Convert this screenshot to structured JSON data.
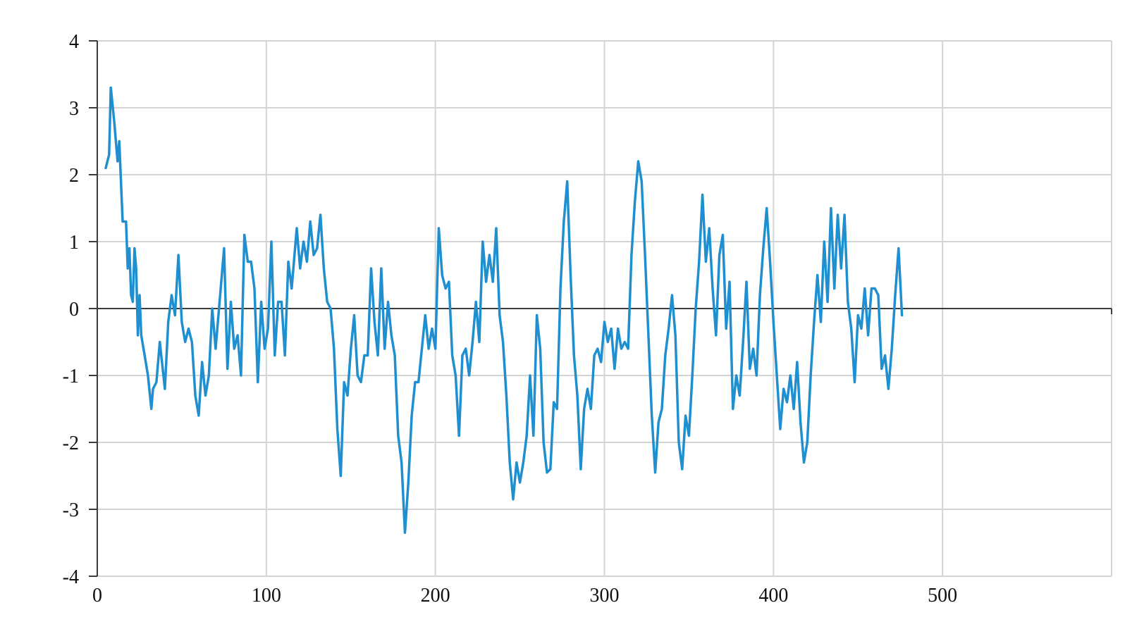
{
  "chart_data": {
    "type": "line",
    "title": "",
    "xlabel": "",
    "ylabel": "",
    "xlim": [
      0,
      600
    ],
    "ylim": [
      -4,
      4
    ],
    "x_ticks": [
      0,
      100,
      200,
      300,
      400,
      500
    ],
    "y_ticks": [
      4,
      3,
      2,
      1,
      0,
      -1,
      -2,
      -3,
      -4
    ],
    "x_tick_labels": [
      "0",
      "100",
      "200",
      "300",
      "400",
      "500"
    ],
    "y_tick_labels": [
      "4",
      "3",
      "2",
      "1",
      "0",
      "-1",
      "-2",
      "-3",
      "-4"
    ],
    "grid": true,
    "legend": "none",
    "colors": {
      "series": "#1f8fcf",
      "grid": "#d4d4d4",
      "axis": "#3c3c3c"
    },
    "series": [
      {
        "color": "#1f8fcf",
        "points": [
          [
            5,
            2.1
          ],
          [
            7,
            2.3
          ],
          [
            8,
            3.3
          ],
          [
            10,
            2.8
          ],
          [
            12,
            2.2
          ],
          [
            13,
            2.5
          ],
          [
            15,
            1.3
          ],
          [
            17,
            1.3
          ],
          [
            18,
            0.6
          ],
          [
            19,
            0.9
          ],
          [
            20,
            0.2
          ],
          [
            21,
            0.1
          ],
          [
            22,
            0.9
          ],
          [
            23,
            0.6
          ],
          [
            24,
            -0.4
          ],
          [
            25,
            0.2
          ],
          [
            26,
            -0.4
          ],
          [
            28,
            -0.7
          ],
          [
            30,
            -1.0
          ],
          [
            32,
            -1.5
          ],
          [
            33,
            -1.2
          ],
          [
            35,
            -1.1
          ],
          [
            37,
            -0.5
          ],
          [
            40,
            -1.2
          ],
          [
            42,
            -0.2
          ],
          [
            44,
            0.2
          ],
          [
            46,
            -0.1
          ],
          [
            48,
            0.8
          ],
          [
            50,
            -0.2
          ],
          [
            52,
            -0.5
          ],
          [
            54,
            -0.3
          ],
          [
            56,
            -0.5
          ],
          [
            58,
            -1.3
          ],
          [
            60,
            -1.6
          ],
          [
            62,
            -0.8
          ],
          [
            64,
            -1.3
          ],
          [
            66,
            -1.0
          ],
          [
            68,
            0.0
          ],
          [
            70,
            -0.6
          ],
          [
            72,
            0.0
          ],
          [
            75,
            0.9
          ],
          [
            77,
            -0.9
          ],
          [
            79,
            0.1
          ],
          [
            81,
            -0.6
          ],
          [
            83,
            -0.4
          ],
          [
            85,
            -1.0
          ],
          [
            87,
            1.1
          ],
          [
            89,
            0.7
          ],
          [
            91,
            0.7
          ],
          [
            93,
            0.3
          ],
          [
            95,
            -1.1
          ],
          [
            97,
            0.1
          ],
          [
            99,
            -0.6
          ],
          [
            101,
            -0.3
          ],
          [
            103,
            1.0
          ],
          [
            105,
            -0.7
          ],
          [
            107,
            0.1
          ],
          [
            109,
            0.1
          ],
          [
            111,
            -0.7
          ],
          [
            113,
            0.7
          ],
          [
            115,
            0.3
          ],
          [
            118,
            1.2
          ],
          [
            120,
            0.6
          ],
          [
            122,
            1.0
          ],
          [
            124,
            0.7
          ],
          [
            126,
            1.3
          ],
          [
            128,
            0.8
          ],
          [
            130,
            0.9
          ],
          [
            132,
            1.4
          ],
          [
            134,
            0.6
          ],
          [
            136,
            0.1
          ],
          [
            138,
            0.0
          ],
          [
            140,
            -0.6
          ],
          [
            142,
            -1.8
          ],
          [
            144,
            -2.5
          ],
          [
            146,
            -1.1
          ],
          [
            148,
            -1.3
          ],
          [
            150,
            -0.6
          ],
          [
            152,
            -0.1
          ],
          [
            154,
            -1.0
          ],
          [
            156,
            -1.1
          ],
          [
            158,
            -0.7
          ],
          [
            160,
            -0.7
          ],
          [
            162,
            0.6
          ],
          [
            164,
            -0.2
          ],
          [
            166,
            -0.7
          ],
          [
            168,
            0.6
          ],
          [
            170,
            -0.6
          ],
          [
            172,
            0.1
          ],
          [
            174,
            -0.4
          ],
          [
            176,
            -0.7
          ],
          [
            178,
            -1.9
          ],
          [
            180,
            -2.3
          ],
          [
            182,
            -3.35
          ],
          [
            184,
            -2.6
          ],
          [
            186,
            -1.6
          ],
          [
            188,
            -1.1
          ],
          [
            190,
            -1.1
          ],
          [
            192,
            -0.6
          ],
          [
            194,
            -0.1
          ],
          [
            196,
            -0.6
          ],
          [
            198,
            -0.3
          ],
          [
            200,
            -0.6
          ],
          [
            202,
            1.2
          ],
          [
            204,
            0.5
          ],
          [
            206,
            0.3
          ],
          [
            208,
            0.4
          ],
          [
            210,
            -0.7
          ],
          [
            212,
            -1.0
          ],
          [
            214,
            -1.9
          ],
          [
            216,
            -0.7
          ],
          [
            218,
            -0.6
          ],
          [
            220,
            -1.0
          ],
          [
            222,
            -0.5
          ],
          [
            224,
            0.1
          ],
          [
            226,
            -0.5
          ],
          [
            228,
            1.0
          ],
          [
            230,
            0.4
          ],
          [
            232,
            0.8
          ],
          [
            234,
            0.4
          ],
          [
            236,
            1.2
          ],
          [
            238,
            -0.1
          ],
          [
            240,
            -0.5
          ],
          [
            242,
            -1.3
          ],
          [
            244,
            -2.3
          ],
          [
            246,
            -2.85
          ],
          [
            248,
            -2.3
          ],
          [
            250,
            -2.6
          ],
          [
            252,
            -2.3
          ],
          [
            254,
            -1.9
          ],
          [
            256,
            -1.0
          ],
          [
            258,
            -1.9
          ],
          [
            260,
            -0.1
          ],
          [
            262,
            -0.6
          ],
          [
            264,
            -2.0
          ],
          [
            266,
            -2.45
          ],
          [
            268,
            -2.4
          ],
          [
            270,
            -1.4
          ],
          [
            272,
            -1.5
          ],
          [
            274,
            0.3
          ],
          [
            276,
            1.3
          ],
          [
            278,
            1.9
          ],
          [
            280,
            0.5
          ],
          [
            282,
            -0.7
          ],
          [
            284,
            -1.3
          ],
          [
            286,
            -2.4
          ],
          [
            288,
            -1.5
          ],
          [
            290,
            -1.2
          ],
          [
            292,
            -1.5
          ],
          [
            294,
            -0.7
          ],
          [
            296,
            -0.6
          ],
          [
            298,
            -0.8
          ],
          [
            300,
            -0.2
          ],
          [
            302,
            -0.5
          ],
          [
            304,
            -0.3
          ],
          [
            306,
            -0.9
          ],
          [
            308,
            -0.3
          ],
          [
            310,
            -0.6
          ],
          [
            312,
            -0.5
          ],
          [
            314,
            -0.6
          ],
          [
            316,
            0.8
          ],
          [
            318,
            1.6
          ],
          [
            320,
            2.2
          ],
          [
            322,
            1.9
          ],
          [
            324,
            0.8
          ],
          [
            326,
            -0.4
          ],
          [
            328,
            -1.6
          ],
          [
            330,
            -2.45
          ],
          [
            332,
            -1.7
          ],
          [
            334,
            -1.5
          ],
          [
            336,
            -0.7
          ],
          [
            338,
            -0.3
          ],
          [
            340,
            0.2
          ],
          [
            342,
            -0.4
          ],
          [
            344,
            -2.0
          ],
          [
            346,
            -2.4
          ],
          [
            348,
            -1.6
          ],
          [
            350,
            -1.9
          ],
          [
            352,
            -1.0
          ],
          [
            354,
            0.0
          ],
          [
            356,
            0.7
          ],
          [
            358,
            1.7
          ],
          [
            360,
            0.7
          ],
          [
            362,
            1.2
          ],
          [
            364,
            0.3
          ],
          [
            366,
            -0.4
          ],
          [
            368,
            0.8
          ],
          [
            370,
            1.1
          ],
          [
            372,
            -0.3
          ],
          [
            374,
            0.4
          ],
          [
            376,
            -1.5
          ],
          [
            378,
            -1.0
          ],
          [
            380,
            -1.3
          ],
          [
            382,
            -0.5
          ],
          [
            384,
            0.4
          ],
          [
            386,
            -0.9
          ],
          [
            388,
            -0.6
          ],
          [
            390,
            -1.0
          ],
          [
            392,
            0.2
          ],
          [
            394,
            0.9
          ],
          [
            396,
            1.5
          ],
          [
            398,
            0.7
          ],
          [
            400,
            -0.2
          ],
          [
            402,
            -1.0
          ],
          [
            404,
            -1.8
          ],
          [
            406,
            -1.2
          ],
          [
            408,
            -1.4
          ],
          [
            410,
            -1.0
          ],
          [
            412,
            -1.5
          ],
          [
            414,
            -0.8
          ],
          [
            416,
            -1.7
          ],
          [
            418,
            -2.3
          ],
          [
            420,
            -2.0
          ],
          [
            422,
            -1.0
          ],
          [
            424,
            -0.2
          ],
          [
            426,
            0.5
          ],
          [
            428,
            -0.2
          ],
          [
            430,
            1.0
          ],
          [
            432,
            0.1
          ],
          [
            434,
            1.5
          ],
          [
            436,
            0.3
          ],
          [
            438,
            1.4
          ],
          [
            440,
            0.6
          ],
          [
            442,
            1.4
          ],
          [
            444,
            0.1
          ],
          [
            446,
            -0.3
          ],
          [
            448,
            -1.1
          ],
          [
            450,
            -0.1
          ],
          [
            452,
            -0.3
          ],
          [
            454,
            0.3
          ],
          [
            456,
            -0.4
          ],
          [
            458,
            0.3
          ],
          [
            460,
            0.3
          ],
          [
            462,
            0.2
          ],
          [
            464,
            -0.9
          ],
          [
            466,
            -0.7
          ],
          [
            468,
            -1.2
          ],
          [
            470,
            -0.6
          ],
          [
            472,
            0.2
          ],
          [
            474,
            0.9
          ],
          [
            476,
            -0.1
          ]
        ]
      }
    ]
  }
}
